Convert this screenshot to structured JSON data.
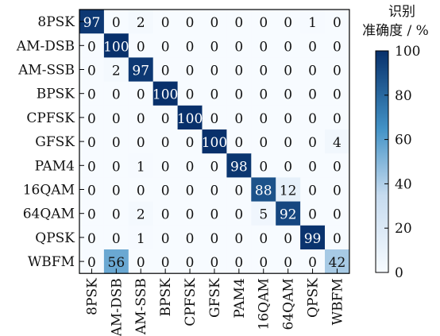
{
  "chart_data": {
    "type": "heatmap",
    "title": "",
    "xlabel": "",
    "ylabel": "",
    "rows": [
      "8PSK",
      "AM-DSB",
      "AM-SSB",
      "BPSK",
      "CPFSK",
      "GFSK",
      "PAM4",
      "16QAM",
      "64QAM",
      "QPSK",
      "WBFM"
    ],
    "columns": [
      "8PSK",
      "AM-DSB",
      "AM-SSB",
      "BPSK",
      "CPFSK",
      "GFSK",
      "PAM4",
      "16QAM",
      "64QAM",
      "QPSK",
      "WBFM"
    ],
    "values": [
      [
        97,
        0,
        2,
        0,
        0,
        0,
        0,
        0,
        0,
        1,
        0
      ],
      [
        0,
        100,
        0,
        0,
        0,
        0,
        0,
        0,
        0,
        0,
        0
      ],
      [
        0,
        2,
        97,
        0,
        0,
        0,
        0,
        0,
        0,
        0,
        0
      ],
      [
        0,
        0,
        0,
        100,
        0,
        0,
        0,
        0,
        0,
        0,
        0
      ],
      [
        0,
        0,
        0,
        0,
        100,
        0,
        0,
        0,
        0,
        0,
        0
      ],
      [
        0,
        0,
        0,
        0,
        0,
        100,
        0,
        0,
        0,
        0,
        4
      ],
      [
        0,
        0,
        1,
        0,
        0,
        0,
        98,
        0,
        0,
        0,
        0
      ],
      [
        0,
        0,
        0,
        0,
        0,
        0,
        0,
        88,
        12,
        0,
        0
      ],
      [
        0,
        0,
        2,
        0,
        0,
        0,
        0,
        5,
        92,
        0,
        0
      ],
      [
        0,
        0,
        1,
        0,
        0,
        0,
        0,
        0,
        0,
        99,
        0
      ],
      [
        0,
        56,
        0,
        0,
        0,
        0,
        0,
        0,
        0,
        0,
        42
      ]
    ],
    "colorbar": {
      "label_line1": "识别",
      "label_line2": "准确度 / %",
      "range": [
        0,
        100
      ],
      "ticks": [
        0,
        20,
        40,
        60,
        80,
        100
      ],
      "color_low": "#f7fbff",
      "color_high": "#08306b"
    },
    "grid": false,
    "legend": "right"
  }
}
